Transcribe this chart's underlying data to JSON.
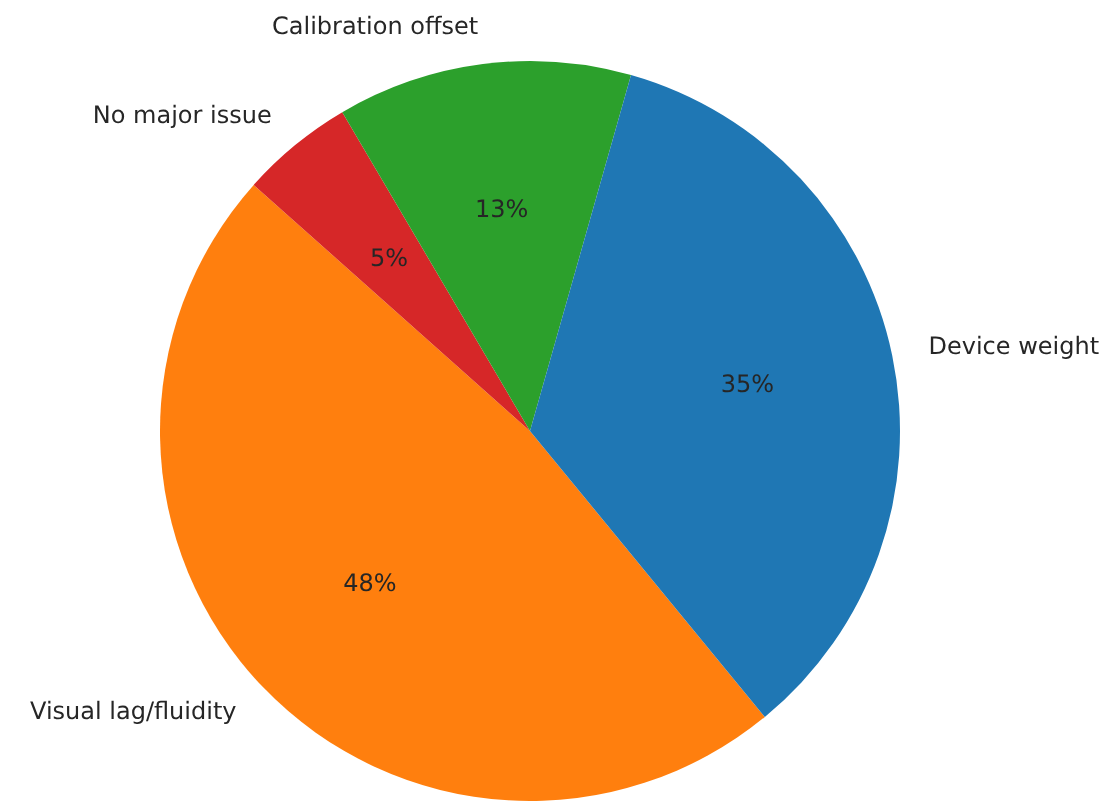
{
  "chart_data": {
    "type": "pie",
    "categories": [
      "Device weight",
      "Calibration offset",
      "No major issue",
      "Visual lag/fluidity"
    ],
    "values": [
      35,
      13,
      5,
      48
    ],
    "value_labels": [
      "35%",
      "13%",
      "5%",
      "48%"
    ],
    "colors": [
      "#1f77b4",
      "#2ca02c",
      "#d62728",
      "#ff7f0e"
    ],
    "legend": false
  }
}
